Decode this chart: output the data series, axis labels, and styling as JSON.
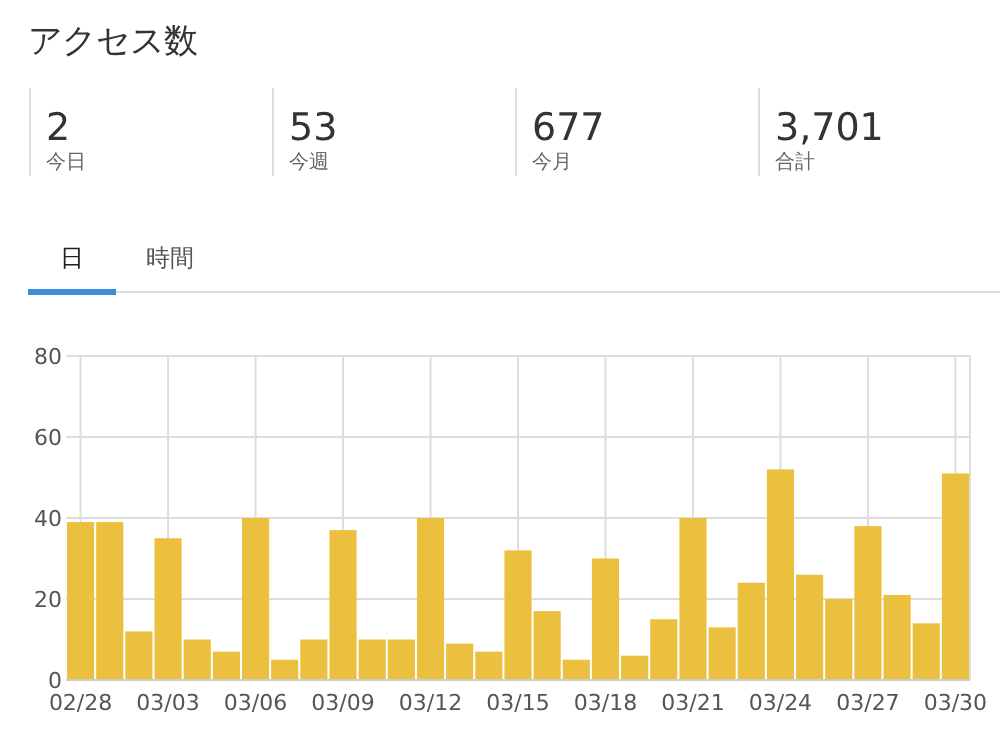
{
  "chart_data": [
    {
      "type": "other",
      "title": "アクセス数",
      "categories": [
        "今日",
        "今週",
        "今月",
        "合計"
      ],
      "annotations": [
        "2",
        "53",
        "677",
        "3,701",
        "日",
        "時間"
      ]
    },
    {
      "type": "bar",
      "categories": [
        "02/28",
        null,
        null,
        "03/03",
        null,
        null,
        "03/06",
        null,
        null,
        "03/09",
        null,
        null,
        "03/12",
        null,
        null,
        "03/15",
        null,
        null,
        "03/18",
        null,
        null,
        "03/21",
        null,
        null,
        "03/24",
        null,
        null,
        "03/27",
        null,
        null,
        "03/30"
      ],
      "values": [
        39,
        39,
        12,
        35,
        10,
        7,
        40,
        5,
        10,
        37,
        10,
        10,
        40,
        9,
        7,
        32,
        17,
        5,
        30,
        6,
        15,
        40,
        13,
        24,
        52,
        26,
        20,
        38,
        21,
        14,
        51
      ],
      "color": "#ecc03f",
      "ylim": [
        0,
        80
      ],
      "yticks": [
        0,
        20,
        40,
        60,
        80
      ],
      "grid": true
    }
  ]
}
